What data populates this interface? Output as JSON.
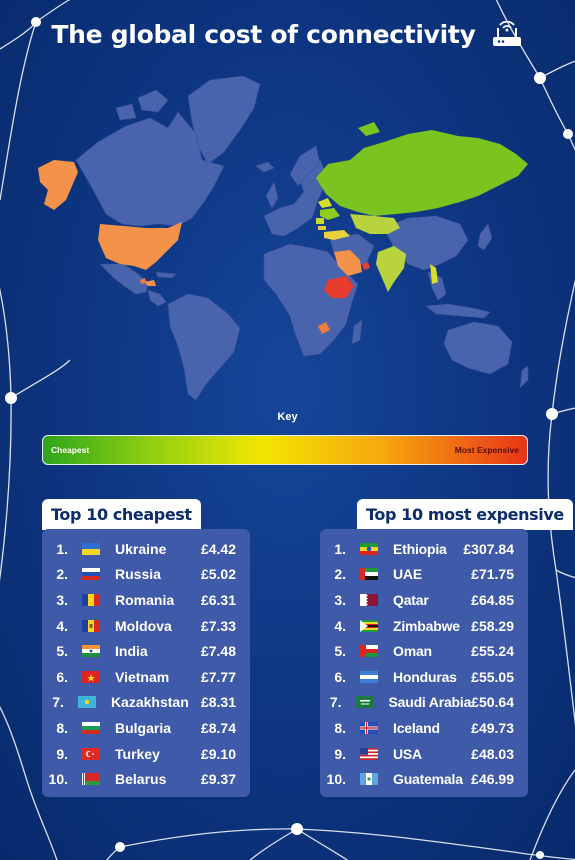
{
  "title": "The global cost of connectivity",
  "icons": {
    "title_icon": "wifi-router-icon"
  },
  "key": {
    "label": "Key",
    "cheapest": "Cheapest",
    "most_expensive": "Most Expensive"
  },
  "colors": {
    "background": "#0d347f",
    "land_default": "#4a63ad",
    "cheap_green": "#7bc41f",
    "mid_yellow": "#d7df2a",
    "orange": "#f4924a",
    "red": "#e73c2e",
    "panel": "#3f5aa8"
  },
  "cheapest": {
    "heading": "Top 10 cheapest",
    "items": [
      {
        "rank": "1.",
        "country": "Ukraine",
        "price": "£4.42",
        "flag": "ukraine-flag-icon"
      },
      {
        "rank": "2.",
        "country": "Russia",
        "price": "£5.02",
        "flag": "russia-flag-icon"
      },
      {
        "rank": "3.",
        "country": "Romania",
        "price": "£6.31",
        "flag": "romania-flag-icon"
      },
      {
        "rank": "4.",
        "country": "Moldova",
        "price": "£7.33",
        "flag": "moldova-flag-icon"
      },
      {
        "rank": "5.",
        "country": "India",
        "price": "£7.48",
        "flag": "india-flag-icon"
      },
      {
        "rank": "6.",
        "country": "Vietnam",
        "price": "£7.77",
        "flag": "vietnam-flag-icon"
      },
      {
        "rank": "7.",
        "country": "Kazakhstan",
        "price": "£8.31",
        "flag": "kazakhstan-flag-icon"
      },
      {
        "rank": "8.",
        "country": "Bulgaria",
        "price": "£8.74",
        "flag": "bulgaria-flag-icon"
      },
      {
        "rank": "9.",
        "country": "Turkey",
        "price": "£9.10",
        "flag": "turkey-flag-icon"
      },
      {
        "rank": "10.",
        "country": "Belarus",
        "price": "£9.37",
        "flag": "belarus-flag-icon"
      }
    ]
  },
  "most_expensive": {
    "heading": "Top 10 most expensive",
    "items": [
      {
        "rank": "1.",
        "country": "Ethiopia",
        "price": "£307.84",
        "flag": "ethiopia-flag-icon"
      },
      {
        "rank": "2.",
        "country": "UAE",
        "price": "£71.75",
        "flag": "uae-flag-icon"
      },
      {
        "rank": "3.",
        "country": "Qatar",
        "price": "£64.85",
        "flag": "qatar-flag-icon"
      },
      {
        "rank": "4.",
        "country": "Zimbabwe",
        "price": "£58.29",
        "flag": "zimbabwe-flag-icon"
      },
      {
        "rank": "5.",
        "country": "Oman",
        "price": "£55.24",
        "flag": "oman-flag-icon"
      },
      {
        "rank": "6.",
        "country": "Honduras",
        "price": "£55.05",
        "flag": "honduras-flag-icon"
      },
      {
        "rank": "7.",
        "country": "Saudi Arabia",
        "price": "£50.64",
        "flag": "saudi-arabia-flag-icon"
      },
      {
        "rank": "8.",
        "country": "Iceland",
        "price": "£49.73",
        "flag": "iceland-flag-icon"
      },
      {
        "rank": "9.",
        "country": "USA",
        "price": "£48.03",
        "flag": "usa-flag-icon"
      },
      {
        "rank": "10.",
        "country": "Guatemala",
        "price": "£46.99",
        "flag": "guatemala-flag-icon"
      }
    ]
  }
}
